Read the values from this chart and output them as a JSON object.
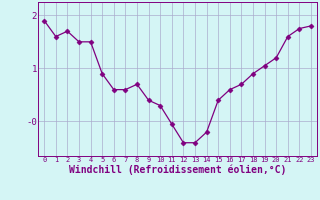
{
  "x": [
    0,
    1,
    2,
    3,
    4,
    5,
    6,
    7,
    8,
    9,
    10,
    11,
    12,
    13,
    14,
    15,
    16,
    17,
    18,
    19,
    20,
    21,
    22,
    23
  ],
  "y": [
    1.9,
    1.6,
    1.7,
    1.5,
    1.5,
    0.9,
    0.6,
    0.6,
    0.7,
    0.4,
    0.3,
    -0.05,
    -0.4,
    -0.4,
    -0.2,
    0.4,
    0.6,
    0.7,
    0.9,
    1.05,
    1.2,
    1.6,
    1.75,
    1.8
  ],
  "line_color": "#800080",
  "marker": "D",
  "marker_size": 2.5,
  "bg_color": "#d4f5f5",
  "grid_color": "#aaaacc",
  "xlabel": "Windchill (Refroidissement éolien,°C)",
  "xlabel_fontsize": 7,
  "ytick_labels": [
    "2",
    "1",
    "-0"
  ],
  "ytick_vals": [
    2,
    1,
    0
  ],
  "ylim": [
    -0.65,
    2.25
  ],
  "xlim": [
    -0.5,
    23.5
  ],
  "xtick_fontsize": 5.0,
  "ytick_fontsize": 6.5
}
